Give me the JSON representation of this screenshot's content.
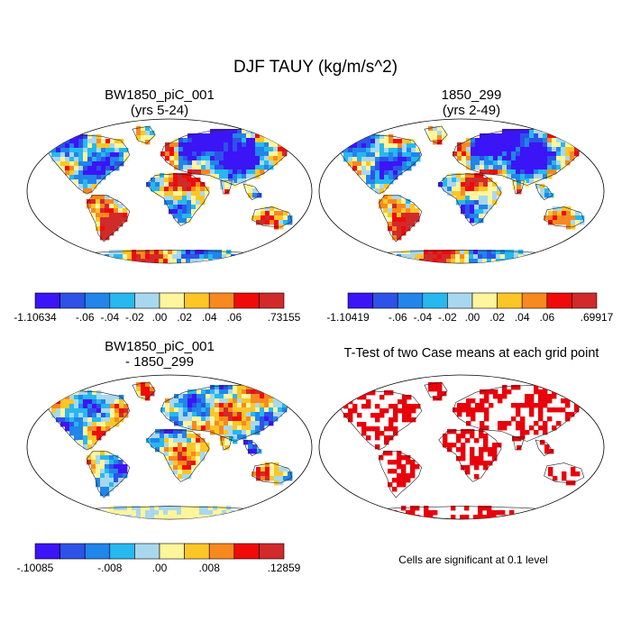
{
  "figure": {
    "title": "DJF TAUY (kg/m/s^2)"
  },
  "panels": [
    {
      "id": "case1",
      "title_line1": "BW1850_piC_001",
      "title_line2": "(yrs 5-24)"
    },
    {
      "id": "case2",
      "title_line1": "1850_299",
      "title_line2": "(yrs 2-49)"
    },
    {
      "id": "diff",
      "title_line1": "BW1850_piC_001",
      "title_line2": "- 1850_299"
    },
    {
      "id": "ttest",
      "title_line1": "T-Test of two Case means at each grid point",
      "title_line2": ""
    }
  ],
  "colorbars": [
    {
      "id": "cb1",
      "colors": [
        "#3b15f5",
        "#2d52e8",
        "#2185ea",
        "#27b8ef",
        "#a8d8ee",
        "#fff59b",
        "#fcc627",
        "#f8891f",
        "#f10a0a",
        "#d12a2a"
      ],
      "labels": [
        "-1.10634",
        "-.06",
        "-.04",
        "-.02",
        ".00",
        ".02",
        ".04",
        ".06",
        ".73155"
      ],
      "label_boundaries": [
        0,
        2,
        3,
        4,
        5,
        6,
        7,
        8,
        10
      ]
    },
    {
      "id": "cb2",
      "colors": [
        "#3b15f5",
        "#2d52e8",
        "#2185ea",
        "#27b8ef",
        "#a8d8ee",
        "#fff59b",
        "#fcc627",
        "#f8891f",
        "#f10a0a",
        "#d12a2a"
      ],
      "labels": [
        "-1.10419",
        "-.06",
        "-.04",
        "-.02",
        ".00",
        ".02",
        ".04",
        ".06",
        ".69917"
      ],
      "label_boundaries": [
        0,
        2,
        3,
        4,
        5,
        6,
        7,
        8,
        10
      ]
    },
    {
      "id": "cb3",
      "colors": [
        "#3b15f5",
        "#2d52e8",
        "#2185ea",
        "#27b8ef",
        "#a8d8ee",
        "#fff59b",
        "#fcc627",
        "#f8891f",
        "#f10a0a",
        "#d12a2a"
      ],
      "labels": [
        "-.10085",
        "-.008",
        ".00",
        ".008",
        ".12859"
      ],
      "label_boundaries": [
        0,
        3,
        5,
        7,
        10
      ]
    }
  ],
  "significance_note": "Cells are significant at 0.1 level",
  "significance_color": "#e8000b"
}
